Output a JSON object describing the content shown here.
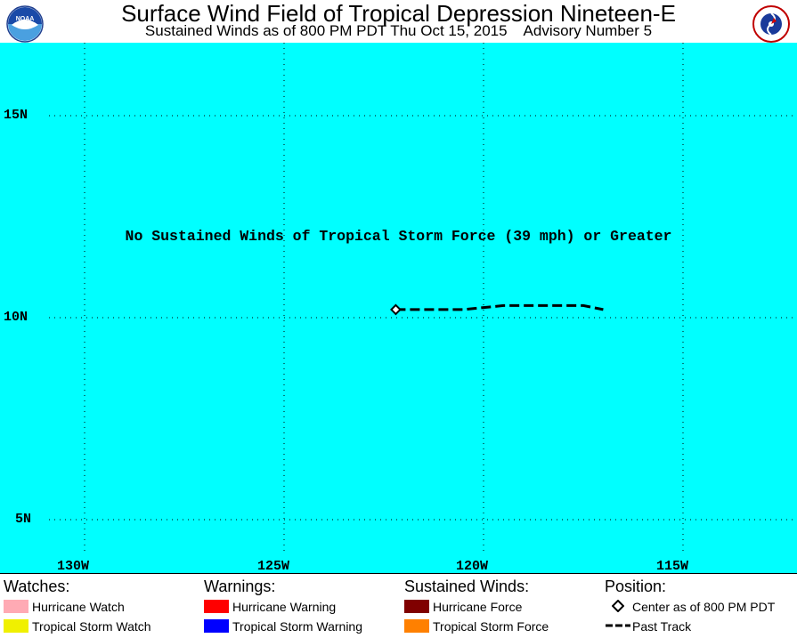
{
  "header": {
    "title": "Surface Wind Field of Tropical Depression Nineteen-E",
    "subtitle": "Sustained Winds as of 800 PM PDT Thu Oct 15, 2015    Advisory Number 5",
    "left_logo": "noaa-logo",
    "left_logo_text": "NOAA",
    "right_logo": "national-weather-service-logo",
    "right_logo_text": "NATIONAL WEATHER SERVICE"
  },
  "map": {
    "background_color": "#00ffff",
    "grid": "dotted",
    "latitude_labels": [
      "15N",
      "10N",
      "5N"
    ],
    "longitude_labels": [
      "130W",
      "125W",
      "120W",
      "115W"
    ],
    "notice": "No Sustained Winds of Tropical Storm Force (39 mph) or Greater",
    "storm_center": {
      "lat": 10.2,
      "lon": 122.2
    },
    "past_track": [
      {
        "lat": 10.2,
        "lon": 122.2
      },
      {
        "lat": 10.2,
        "lon": 121.5
      },
      {
        "lat": 10.2,
        "lon": 120.5
      },
      {
        "lat": 10.3,
        "lon": 119.5
      },
      {
        "lat": 10.3,
        "lon": 118.5
      },
      {
        "lat": 10.3,
        "lon": 117.5
      },
      {
        "lat": 10.2,
        "lon": 117.0
      }
    ]
  },
  "legend": {
    "watches": {
      "heading": "Watches:",
      "items": [
        {
          "label": "Hurricane Watch",
          "color": "#ffaab4"
        },
        {
          "label": "Tropical Storm Watch",
          "color": "#f0f000"
        }
      ]
    },
    "warnings": {
      "heading": "Warnings:",
      "items": [
        {
          "label": "Hurricane Warning",
          "color": "#ff0000"
        },
        {
          "label": "Tropical Storm Warning",
          "color": "#0000ff"
        }
      ]
    },
    "winds": {
      "heading": "Sustained Winds:",
      "items": [
        {
          "label": "Hurricane Force",
          "color": "#800000"
        },
        {
          "label": "Tropical Storm Force",
          "color": "#ff8000"
        }
      ]
    },
    "position": {
      "heading": "Position:",
      "items": [
        {
          "label": "Center as of 800 PM PDT",
          "icon": "diamond-icon"
        },
        {
          "label": "Past Track",
          "icon": "dashed-line-icon"
        }
      ]
    }
  }
}
